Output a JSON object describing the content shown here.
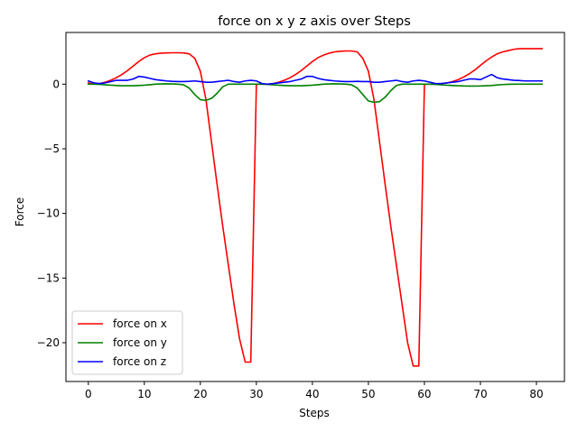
{
  "chart_data": {
    "type": "line",
    "title": "force on x y z axis over Steps",
    "xlabel": "Steps",
    "ylabel": "Force",
    "xlim": [
      -4,
      85
    ],
    "ylim": [
      -23,
      4
    ],
    "xticks": [
      0,
      10,
      20,
      30,
      40,
      50,
      60,
      70,
      80
    ],
    "xtick_labels": [
      "0",
      "10",
      "20",
      "30",
      "40",
      "50",
      "60",
      "70",
      "80"
    ],
    "yticks": [
      -20,
      -15,
      -10,
      -5,
      0
    ],
    "ytick_labels": [
      "−20",
      "−15",
      "−10",
      "−5",
      "0"
    ],
    "grid": false,
    "legend_position": "lower-left",
    "x": [
      0,
      1,
      2,
      3,
      4,
      5,
      6,
      7,
      8,
      9,
      10,
      11,
      12,
      13,
      14,
      15,
      16,
      17,
      18,
      19,
      20,
      21,
      22,
      23,
      24,
      25,
      26,
      27,
      28,
      29,
      30,
      31,
      32,
      33,
      34,
      35,
      36,
      37,
      38,
      39,
      40,
      41,
      42,
      43,
      44,
      45,
      46,
      47,
      48,
      49,
      50,
      51,
      52,
      53,
      54,
      55,
      56,
      57,
      58,
      59,
      60,
      61,
      62,
      63,
      64,
      65,
      66,
      67,
      68,
      69,
      70,
      71,
      72,
      73,
      74,
      75,
      76,
      77,
      78,
      79,
      80,
      81
    ],
    "series": [
      {
        "name": "force on x",
        "color": "#ff0000",
        "values": [
          0.1,
          0.0,
          0.05,
          0.15,
          0.3,
          0.5,
          0.75,
          1.05,
          1.4,
          1.75,
          2.05,
          2.25,
          2.35,
          2.4,
          2.42,
          2.43,
          2.43,
          2.42,
          2.35,
          2.0,
          1.0,
          -1.2,
          -4.5,
          -7.8,
          -11.0,
          -14.0,
          -17.0,
          -19.7,
          -21.5,
          -21.5,
          0.0,
          0.0,
          0.0,
          0.05,
          0.15,
          0.3,
          0.5,
          0.75,
          1.05,
          1.4,
          1.75,
          2.05,
          2.25,
          2.4,
          2.5,
          2.55,
          2.57,
          2.57,
          2.5,
          2.0,
          1.0,
          -1.2,
          -4.5,
          -7.8,
          -11.0,
          -14.0,
          -17.0,
          -20.0,
          -21.8,
          -21.8,
          0.0,
          0.0,
          0.0,
          0.05,
          0.1,
          0.2,
          0.35,
          0.55,
          0.8,
          1.1,
          1.45,
          1.8,
          2.1,
          2.35,
          2.5,
          2.6,
          2.7,
          2.75,
          2.75,
          2.75,
          2.75,
          2.75
        ]
      },
      {
        "name": "force on y",
        "color": "#008000",
        "values": [
          0.0,
          0.0,
          -0.02,
          -0.05,
          -0.08,
          -0.1,
          -0.12,
          -0.12,
          -0.12,
          -0.1,
          -0.08,
          -0.04,
          0.0,
          0.02,
          0.03,
          0.02,
          0.0,
          -0.05,
          -0.3,
          -0.8,
          -1.2,
          -1.25,
          -1.1,
          -0.7,
          -0.2,
          0.0,
          0.0,
          0.0,
          0.0,
          0.0,
          0.0,
          0.0,
          -0.02,
          -0.05,
          -0.08,
          -0.1,
          -0.12,
          -0.12,
          -0.12,
          -0.1,
          -0.08,
          -0.04,
          0.0,
          0.02,
          0.03,
          0.02,
          0.0,
          -0.05,
          -0.3,
          -0.8,
          -1.3,
          -1.4,
          -1.35,
          -1.0,
          -0.5,
          -0.1,
          0.0,
          0.0,
          0.0,
          0.0,
          0.0,
          0.0,
          -0.02,
          -0.05,
          -0.08,
          -0.1,
          -0.12,
          -0.14,
          -0.15,
          -0.15,
          -0.14,
          -0.12,
          -0.1,
          -0.06,
          -0.03,
          -0.01,
          0.0,
          0.0,
          0.0,
          0.0,
          0.0,
          0.0
        ]
      },
      {
        "name": "force on z",
        "color": "#0000ff",
        "values": [
          0.25,
          0.1,
          0.05,
          0.1,
          0.2,
          0.3,
          0.3,
          0.3,
          0.4,
          0.6,
          0.55,
          0.45,
          0.35,
          0.3,
          0.25,
          0.22,
          0.2,
          0.2,
          0.22,
          0.25,
          0.2,
          0.15,
          0.15,
          0.2,
          0.25,
          0.3,
          0.2,
          0.15,
          0.25,
          0.3,
          0.25,
          0.05,
          0.0,
          0.05,
          0.1,
          0.15,
          0.2,
          0.3,
          0.4,
          0.6,
          0.6,
          0.45,
          0.35,
          0.3,
          0.25,
          0.22,
          0.2,
          0.2,
          0.22,
          0.2,
          0.2,
          0.15,
          0.15,
          0.2,
          0.25,
          0.3,
          0.2,
          0.15,
          0.25,
          0.3,
          0.25,
          0.15,
          0.05,
          0.05,
          0.1,
          0.15,
          0.2,
          0.3,
          0.4,
          0.4,
          0.35,
          0.55,
          0.75,
          0.5,
          0.4,
          0.35,
          0.3,
          0.28,
          0.25,
          0.25,
          0.25,
          0.25
        ]
      }
    ]
  }
}
